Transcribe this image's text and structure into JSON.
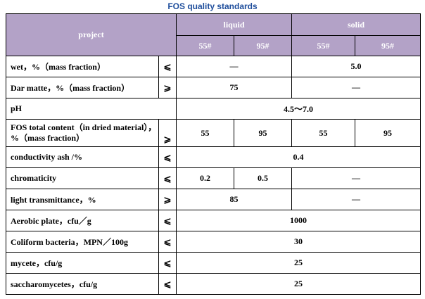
{
  "title": "FOS quality  standards",
  "header": {
    "project": "project",
    "liquid": "liquid",
    "solid": "solid",
    "sub": [
      "55#",
      "95#",
      "55#",
      "95#"
    ]
  },
  "rows": [
    {
      "label": "wet，%（mass fraction）",
      "sym": "⩽",
      "cells": [
        "—",
        "5.0"
      ]
    },
    {
      "label": "Dar matte，%（mass fraction）",
      "sym": "⩾",
      "cells": [
        "75",
        "—"
      ]
    },
    {
      "label": "pH",
      "sym": "",
      "cells": [
        "4.5～7.0"
      ]
    },
    {
      "label": "FOS total content（in dried material），%（mass fraction）",
      "sym": "⩾",
      "cells": [
        "55",
        "95",
        "55",
        "95"
      ]
    },
    {
      "label": "conductivity ash /%",
      "sym": "⩽",
      "cells": [
        "0.4"
      ]
    },
    {
      "label": "chromaticity",
      "sym": "⩽",
      "cells": [
        "0.2",
        "0.5",
        "—"
      ]
    },
    {
      "label": "light transmittance，%",
      "sym": "⩾",
      "cells": [
        "85",
        "—"
      ]
    },
    {
      "label": "Aerobic plate，cfu／g",
      "sym": "⩽",
      "cells": [
        "1000"
      ]
    },
    {
      "label": "Coliform bacteria，MPN／100g",
      "sym": "⩽",
      "cells": [
        "30"
      ]
    },
    {
      "label": "mycete，cfu/g",
      "sym": "⩽",
      "cells": [
        "25"
      ]
    },
    {
      "label": "saccharomycetes，cfu/g",
      "sym": "⩽",
      "cells": [
        "25"
      ]
    }
  ]
}
